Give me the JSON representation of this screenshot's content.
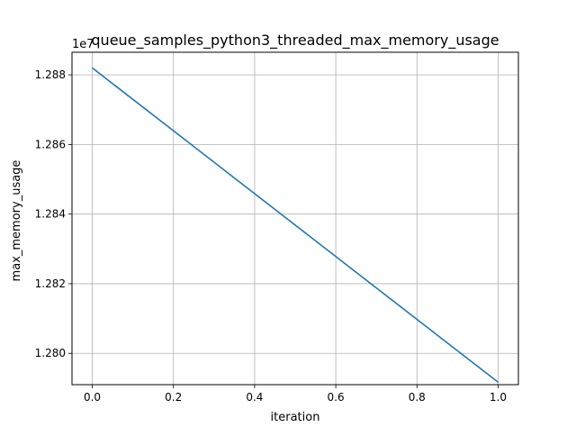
{
  "chart_data": {
    "type": "line",
    "title": "queue_samples_python3_threaded_max_memory_usage",
    "xlabel": "iteration",
    "ylabel": "max_memory_usage",
    "offset_text": "1e7",
    "xlim": [
      -0.05,
      1.05
    ],
    "ylim": [
      12791000,
      12886500
    ],
    "x_ticks": [
      0.0,
      0.2,
      0.4,
      0.6,
      0.8,
      1.0
    ],
    "x_tick_labels": [
      "0.0",
      "0.2",
      "0.4",
      "0.6",
      "0.8",
      "1.0"
    ],
    "y_ticks": [
      12800000,
      12820000,
      12840000,
      12860000,
      12880000
    ],
    "y_tick_labels": [
      "1.280",
      "1.282",
      "1.284",
      "1.286",
      "1.288"
    ],
    "grid": true,
    "series": [
      {
        "color": "#1f77b4",
        "x": [
          0,
          1
        ],
        "y": [
          12882000,
          12791700
        ]
      }
    ]
  }
}
